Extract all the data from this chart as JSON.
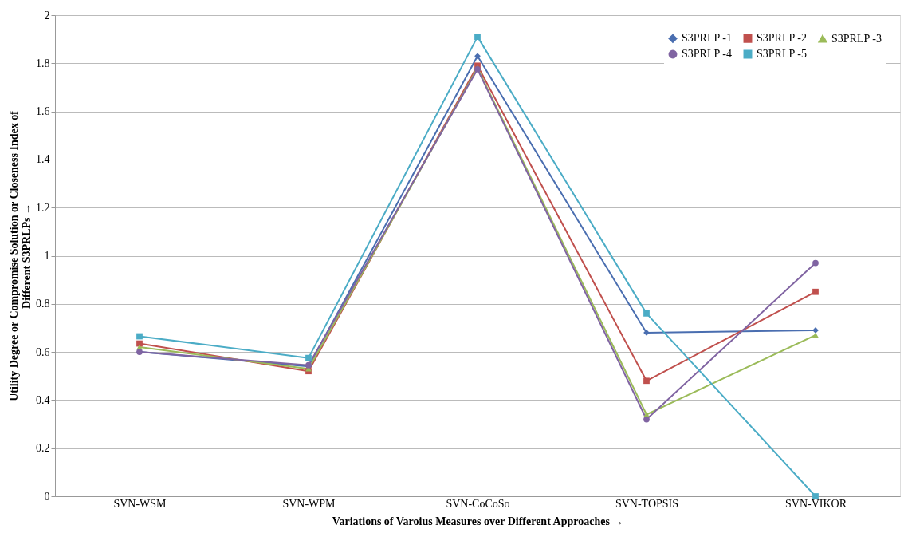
{
  "chart_data": {
    "type": "line",
    "xlabel": "Variations of Varoius Measures over Different Approaches →",
    "ylabel": "Utility Degree or Compromise Solution or Closeness Index of\nDifferent S3PRLPs →",
    "categories": [
      "SVN-WSM",
      "SVN-WPM",
      "SVN-CoCoSo",
      "SVN-TOPSIS",
      "SVN-VIKOR"
    ],
    "series": [
      {
        "name": "S3PRLP -1",
        "color": "#4a6eb0",
        "marker": "diamond",
        "values": [
          0.6,
          0.54,
          1.83,
          0.68,
          0.69
        ]
      },
      {
        "name": "S3PRLP -2",
        "color": "#c0504d",
        "marker": "square",
        "values": [
          0.635,
          0.52,
          1.79,
          0.48,
          0.85
        ]
      },
      {
        "name": "S3PRLP -3",
        "color": "#9bbb59",
        "marker": "triangle",
        "values": [
          0.62,
          0.53,
          1.78,
          0.34,
          0.67
        ]
      },
      {
        "name": "S3PRLP -4",
        "color": "#8064a2",
        "marker": "circle",
        "values": [
          0.6,
          0.545,
          1.775,
          0.32,
          0.97
        ]
      },
      {
        "name": "S3PRLP -5",
        "color": "#4bacc6",
        "marker": "square",
        "values": [
          0.665,
          0.575,
          1.91,
          0.76,
          0.0
        ]
      }
    ],
    "ylim": [
      0,
      2
    ],
    "yticks": [
      0,
      0.2,
      0.4,
      0.6,
      0.8,
      1,
      1.2,
      1.4,
      1.6,
      1.8,
      2
    ],
    "grid": "y",
    "legend": "top right",
    "line_style": "solid"
  }
}
